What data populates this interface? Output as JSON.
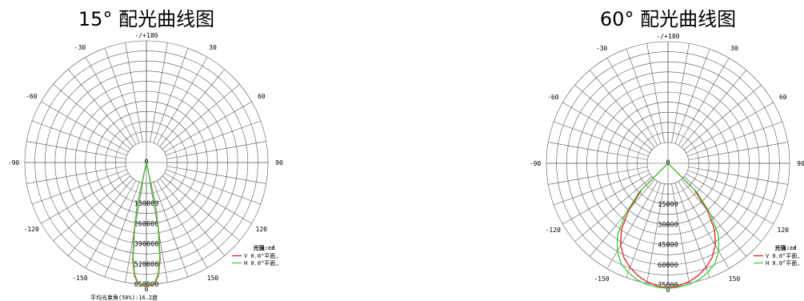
{
  "chart_data": [
    {
      "type": "polar",
      "title": "15° 配光曲线图",
      "angle_labels": [
        "-/+180",
        "150",
        "120",
        "90",
        "60",
        "30",
        "0",
        "-30",
        "-60",
        "-90",
        "-120",
        "-150"
      ],
      "radial_labels": [
        "0",
        "130000",
        "260000",
        "390000",
        "520000",
        "650000"
      ],
      "rmax": 650000,
      "legend_title": "光强:cd",
      "footer": "平均光束角(50%):16.2度",
      "series": [
        {
          "name": "V 0.0°平面,",
          "color": "#e02020",
          "angles": [
            -180,
            -12,
            -10,
            -8,
            -6,
            -4,
            -2,
            0,
            2,
            4,
            6,
            8,
            10,
            12,
            180
          ],
          "values": [
            0,
            150000,
            330000,
            500000,
            600000,
            645000,
            660000,
            662000,
            660000,
            645000,
            600000,
            500000,
            330000,
            150000,
            0
          ]
        },
        {
          "name": "H 0.0°平面,",
          "color": "#3ccc3c",
          "angles": [
            -180,
            -12,
            -10,
            -8,
            -6,
            -4,
            -2,
            0,
            2,
            4,
            6,
            8,
            10,
            12,
            180
          ],
          "values": [
            0,
            140000,
            310000,
            480000,
            590000,
            640000,
            655000,
            658000,
            655000,
            640000,
            590000,
            480000,
            310000,
            140000,
            0
          ]
        }
      ]
    },
    {
      "type": "polar",
      "title": "60° 配光曲线图",
      "angle_labels": [
        "-/+180",
        "150",
        "120",
        "90",
        "60",
        "30",
        "0",
        "-30",
        "-60",
        "-90",
        "-120",
        "-150"
      ],
      "radial_labels": [
        "0",
        "15000",
        "30000",
        "45000",
        "60000",
        "75000"
      ],
      "rmax": 75000,
      "legend_title": "光强:cd",
      "footer": "",
      "series": [
        {
          "name": "V 0.0°平面,",
          "color": "#e02020",
          "angles": [
            -180,
            -45,
            -40,
            -35,
            -30,
            -25,
            -20,
            -15,
            -10,
            -5,
            0,
            5,
            10,
            15,
            20,
            25,
            30,
            35,
            40,
            45,
            180
          ],
          "values": [
            0,
            12000,
            30000,
            45000,
            55000,
            62000,
            67000,
            71000,
            74000,
            76000,
            77000,
            76000,
            74000,
            71000,
            67000,
            62000,
            55000,
            45000,
            30000,
            12000,
            0
          ]
        },
        {
          "name": "H 0.0°平面,",
          "color": "#3ccc3c",
          "angles": [
            -180,
            -45,
            -40,
            -35,
            -30,
            -25,
            -20,
            -15,
            -10,
            -5,
            0,
            5,
            10,
            15,
            20,
            25,
            30,
            35,
            40,
            45,
            180
          ],
          "values": [
            0,
            15000,
            34000,
            50000,
            60000,
            67000,
            71000,
            74000,
            76000,
            77000,
            77500,
            77000,
            76000,
            74000,
            71000,
            67000,
            60000,
            50000,
            34000,
            15000,
            0
          ]
        }
      ]
    }
  ]
}
